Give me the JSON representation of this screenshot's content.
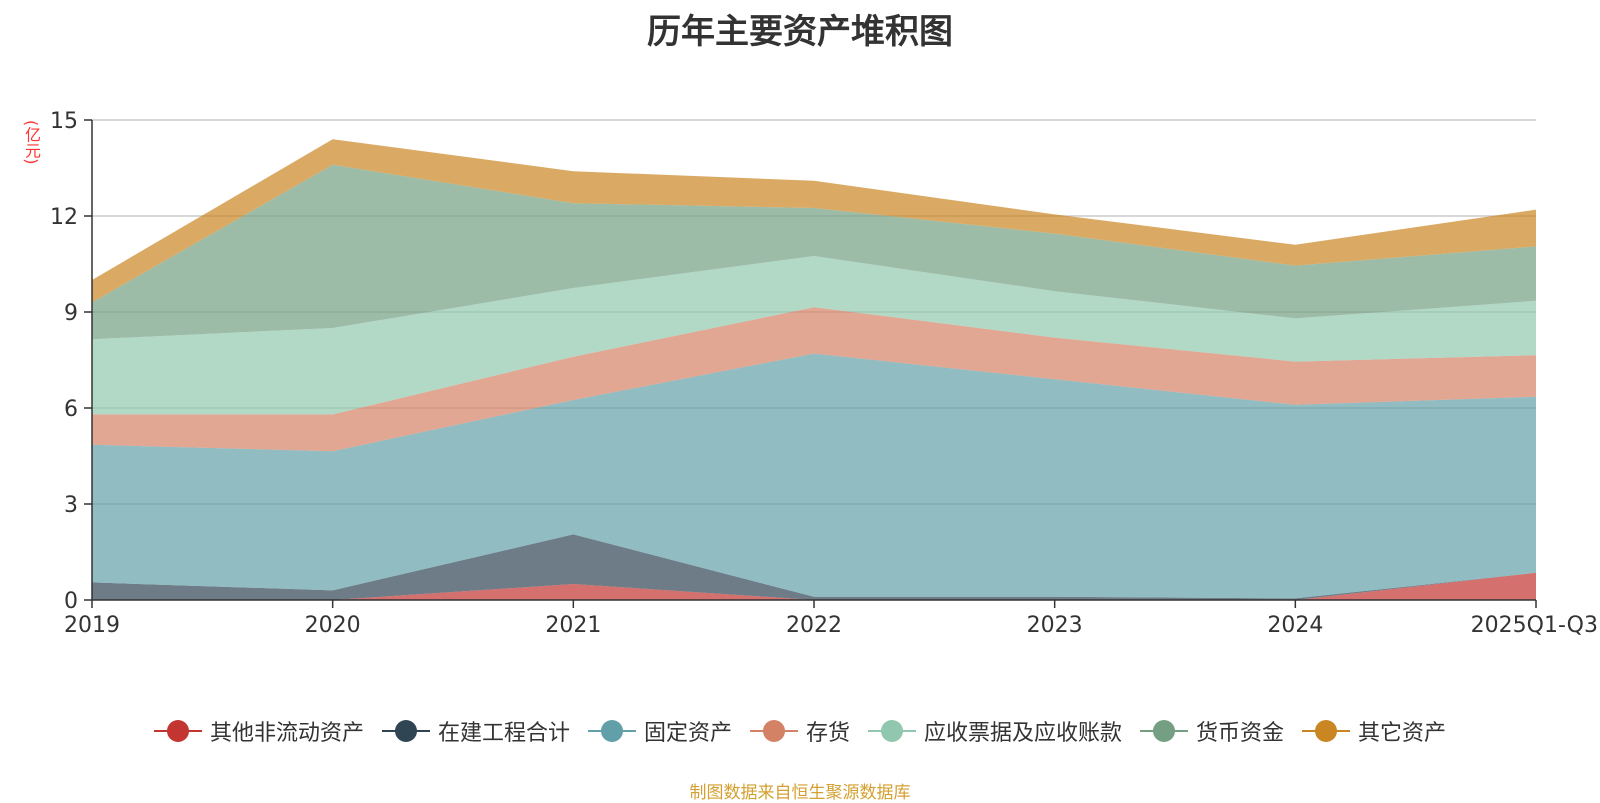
{
  "chart_data": {
    "type": "area",
    "stacked": true,
    "title": "历年主要资产堆积图",
    "ylabel": "(亿元)",
    "xlabel": "",
    "categories": [
      "2019",
      "2020",
      "2021",
      "2022",
      "2023",
      "2024",
      "2025Q1-Q3"
    ],
    "ylim": [
      0,
      15
    ],
    "yticks": [
      0,
      3,
      6,
      9,
      12,
      15
    ],
    "grid": true,
    "legend_position": "bottom",
    "series": [
      {
        "name": "其他非流动资产",
        "color": "#c23531",
        "values": [
          0.0,
          0.0,
          0.5,
          0.0,
          0.0,
          0.0,
          0.85
        ]
      },
      {
        "name": "在建工程合计",
        "color": "#2f4554",
        "values": [
          0.55,
          0.3,
          1.55,
          0.1,
          0.1,
          0.05,
          0.0
        ]
      },
      {
        "name": "固定资产",
        "color": "#61a0a8",
        "values": [
          4.3,
          4.35,
          4.2,
          7.6,
          6.8,
          6.05,
          5.5
        ]
      },
      {
        "name": "存货",
        "color": "#d48265",
        "values": [
          0.95,
          1.15,
          1.35,
          1.45,
          1.3,
          1.35,
          1.3
        ]
      },
      {
        "name": "应收票据及应收账款",
        "color": "#91c7ae",
        "values": [
          2.35,
          2.7,
          2.15,
          1.6,
          1.45,
          1.35,
          1.7
        ]
      },
      {
        "name": "货币资金",
        "color": "#749f83",
        "values": [
          1.15,
          5.1,
          2.65,
          1.5,
          1.8,
          1.65,
          1.7
        ]
      },
      {
        "name": "其它资产",
        "color": "#ca8622",
        "values": [
          0.7,
          0.8,
          1.0,
          0.85,
          0.6,
          0.65,
          1.15
        ]
      }
    ]
  },
  "source_note": "制图数据来自恒生聚源数据库"
}
